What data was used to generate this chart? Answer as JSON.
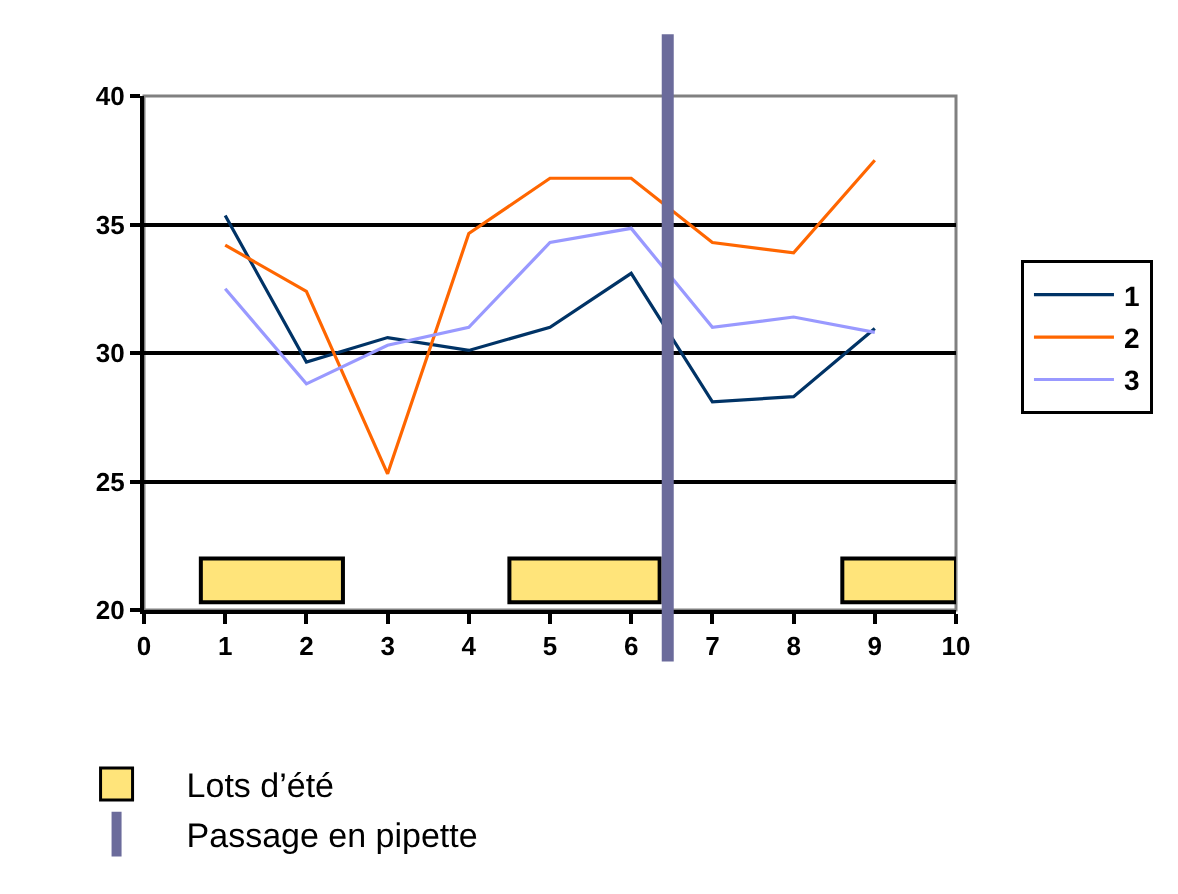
{
  "chart_data": {
    "type": "line",
    "x": [
      1,
      2,
      3,
      4,
      5,
      6,
      7,
      8,
      9
    ],
    "series": [
      {
        "name": "1",
        "color": "#003366",
        "values": [
          35.35,
          29.65,
          30.6,
          30.1,
          31.0,
          33.1,
          28.1,
          28.3,
          30.95
        ]
      },
      {
        "name": "2",
        "color": "#ff6600",
        "values": [
          34.2,
          32.4,
          25.3,
          34.65,
          36.8,
          36.8,
          34.3,
          33.9,
          37.5
        ]
      },
      {
        "name": "3",
        "color": "#9999ff",
        "values": [
          32.5,
          28.8,
          30.3,
          31.0,
          34.3,
          34.85,
          31.0,
          31.4,
          30.8
        ]
      }
    ],
    "xlim": [
      0,
      10
    ],
    "xticks": [
      0,
      1,
      2,
      3,
      4,
      5,
      6,
      7,
      8,
      9,
      10
    ],
    "ylim": [
      20,
      40
    ],
    "yticks": [
      20,
      25,
      30,
      35,
      40
    ],
    "grid": "y",
    "legend": "right",
    "marker": "none",
    "line_style": "solid",
    "bands": [
      {
        "axis": "x",
        "from": 0.7,
        "to": 2.45,
        "label": "Lots d’été",
        "color": "#ffe47a"
      },
      {
        "axis": "x",
        "from": 4.5,
        "to": 6.35,
        "color": "#ffe47a"
      },
      {
        "axis": "x",
        "from": 8.6,
        "to": 10,
        "color": "#ffe47a"
      }
    ],
    "ref_lines": [
      {
        "axis": "x",
        "value": 6.45,
        "label": "Passage en pipette",
        "color": "#6b6b9b"
      }
    ]
  }
}
